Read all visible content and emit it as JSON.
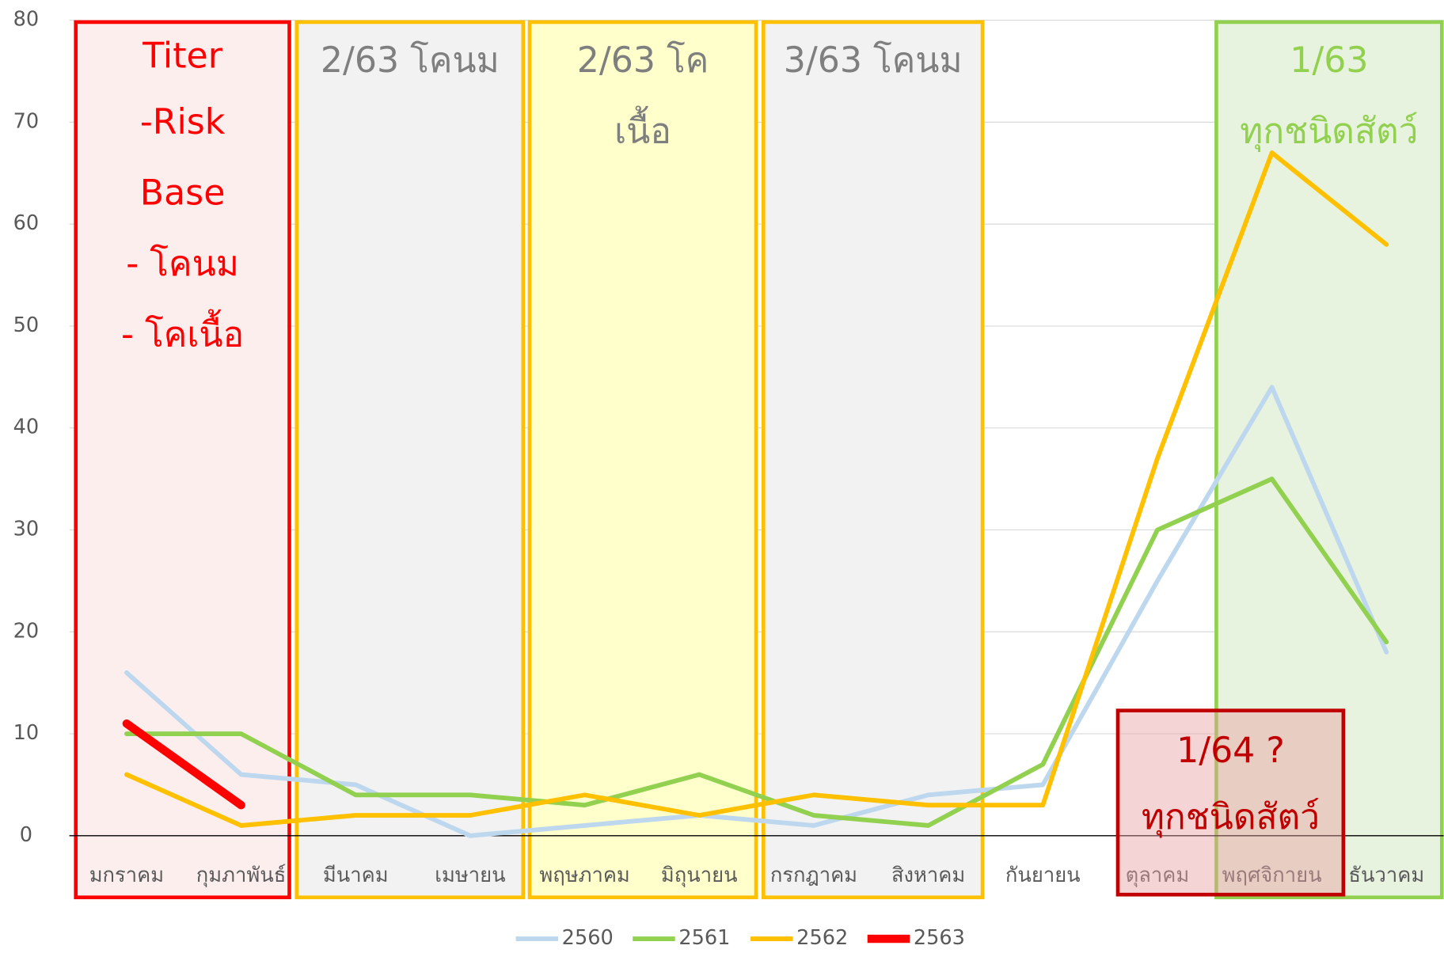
{
  "chart_data": {
    "type": "line",
    "categories": [
      "มกราคม",
      "กุมภาพันธ์",
      "มีนาคม",
      "เมษายน",
      "พฤษภาคม",
      "มิถุนายน",
      "กรกฎาคม",
      "สิงหาคม",
      "กันยายน",
      "ตุลาคม",
      "พฤศจิกายน",
      "ธันวาคม"
    ],
    "series": [
      {
        "name": "2560",
        "color": "#bdd7ee",
        "values": [
          16,
          6,
          5,
          0,
          1,
          2,
          1,
          4,
          5,
          25,
          44,
          18
        ]
      },
      {
        "name": "2561",
        "color": "#92d050",
        "values": [
          10,
          10,
          4,
          4,
          3,
          6,
          2,
          1,
          7,
          30,
          35,
          19
        ]
      },
      {
        "name": "2562",
        "color": "#ffc000",
        "values": [
          6,
          1,
          2,
          2,
          4,
          2,
          4,
          3,
          3,
          37,
          67,
          58
        ]
      },
      {
        "name": "2563",
        "color": "#ff0000",
        "values": [
          11,
          3,
          null,
          null,
          null,
          null,
          null,
          null,
          null,
          null,
          null,
          null
        ]
      }
    ],
    "ylim": [
      0,
      80
    ],
    "yticks": [
      0,
      10,
      20,
      30,
      40,
      50,
      60,
      70,
      80
    ],
    "grid": true,
    "legend": "bottom",
    "annotations": [
      {
        "lines": [
          "Titer",
          "-Risk",
          "Base",
          "- โคนม",
          "- โคเนื้อ"
        ],
        "color": "#ff0000"
      },
      {
        "lines": [
          "2/63 โคนม"
        ],
        "color": "#7f7f7f"
      },
      {
        "lines": [
          "2/63 โค",
          "เนื้อ"
        ],
        "color": "#7f7f7f"
      },
      {
        "lines": [
          "3/63 โคนม"
        ],
        "color": "#7f7f7f"
      },
      {
        "lines": [
          "1/63",
          "ทุกชนิดสัตว์"
        ],
        "color": "#92d050"
      },
      {
        "lines": [
          "1/64 ?",
          "ทุกชนิดสัตว์"
        ],
        "color": "#c00000"
      }
    ]
  }
}
